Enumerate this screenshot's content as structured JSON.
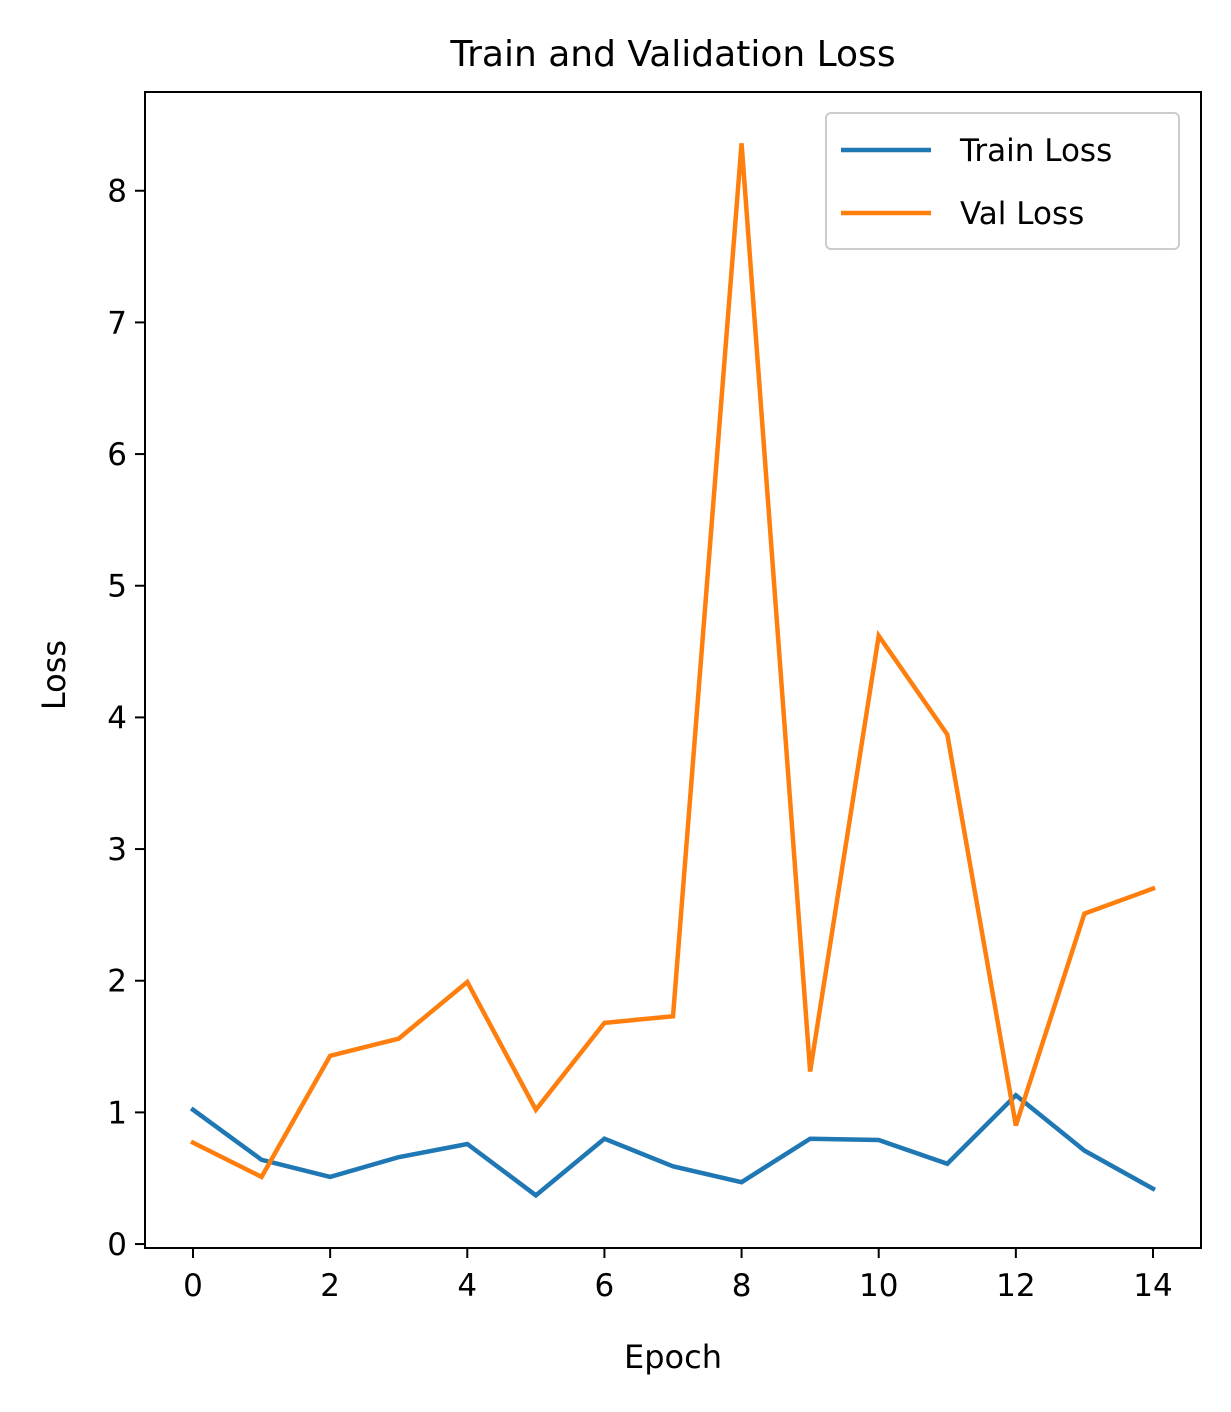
{
  "chart_data": {
    "type": "line",
    "title": "Train and Validation Loss",
    "xlabel": "Epoch",
    "ylabel": "Loss",
    "x": [
      0,
      1,
      2,
      3,
      4,
      5,
      6,
      7,
      8,
      9,
      10,
      11,
      12,
      13,
      14
    ],
    "xlim": [
      -0.7,
      14.7
    ],
    "ylim": [
      -0.03,
      8.75
    ],
    "xticks": [
      0,
      2,
      4,
      6,
      8,
      10,
      12,
      14
    ],
    "xtick_labels": [
      "0",
      "2",
      "4",
      "6",
      "8",
      "10",
      "12",
      "14"
    ],
    "yticks": [
      0,
      1,
      2,
      3,
      4,
      5,
      6,
      7,
      8
    ],
    "ytick_labels": [
      "0",
      "1",
      "2",
      "3",
      "4",
      "5",
      "6",
      "7",
      "8"
    ],
    "grid": false,
    "legend_position": "top-right",
    "series": [
      {
        "name": "Train Loss",
        "color": "#1f77b4",
        "values": [
          1.02,
          0.64,
          0.51,
          0.66,
          0.76,
          0.37,
          0.8,
          0.59,
          0.47,
          0.8,
          0.79,
          0.61,
          1.13,
          0.71,
          0.42
        ]
      },
      {
        "name": "Val Loss",
        "color": "#ff7f0e",
        "values": [
          0.77,
          0.51,
          1.43,
          1.56,
          1.99,
          1.02,
          1.68,
          1.73,
          8.36,
          1.31,
          4.62,
          3.87,
          0.9,
          2.51,
          2.7
        ]
      }
    ]
  }
}
